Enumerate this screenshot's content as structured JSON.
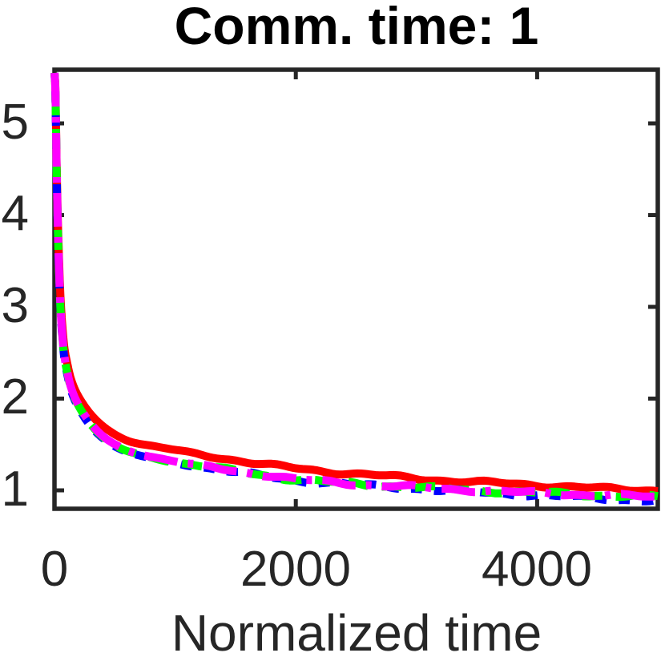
{
  "chart_data": {
    "type": "line",
    "title": "Comm. time: 1",
    "xlabel": "Normalized time",
    "ylabel": "",
    "xlim": [
      0,
      5000
    ],
    "ylim": [
      0.8,
      5.59
    ],
    "grid": false,
    "legend": "none",
    "box": true,
    "x_axis": {
      "label": "Normalized time",
      "tick_labels": [
        "0",
        "2000",
        "4000"
      ],
      "tick_values": [
        0,
        2000,
        4000
      ]
    },
    "y_axis": {
      "label": "",
      "tick_labels": [
        "1",
        "2",
        "3",
        "4",
        "5"
      ],
      "tick_values": [
        1,
        2,
        3,
        4,
        5
      ]
    },
    "series": [
      {
        "color": "#ff0000",
        "line_style": "solid",
        "points": [
          [
            0,
            5.55
          ],
          [
            8,
            5.35
          ],
          [
            18,
            4.55
          ],
          [
            30,
            3.85
          ],
          [
            45,
            3.25
          ],
          [
            60,
            2.88
          ],
          [
            80,
            2.58
          ],
          [
            100,
            2.42
          ],
          [
            140,
            2.2
          ],
          [
            200,
            2.02
          ],
          [
            300,
            1.83
          ],
          [
            420,
            1.68
          ],
          [
            560,
            1.57
          ],
          [
            700,
            1.51
          ],
          [
            950,
            1.45
          ],
          [
            1200,
            1.39
          ],
          [
            1500,
            1.33
          ],
          [
            1750,
            1.28
          ],
          [
            2000,
            1.24
          ],
          [
            2300,
            1.2
          ],
          [
            2600,
            1.17
          ],
          [
            2900,
            1.14
          ],
          [
            3200,
            1.11
          ],
          [
            3500,
            1.09
          ],
          [
            3800,
            1.07
          ],
          [
            4100,
            1.05
          ],
          [
            4400,
            1.03
          ],
          [
            4700,
            1.01
          ],
          [
            5000,
            1.0
          ]
        ]
      },
      {
        "color": "#0000ff",
        "line_style": "dashed",
        "points": [
          [
            0,
            5.55
          ],
          [
            8,
            5.3
          ],
          [
            18,
            4.45
          ],
          [
            30,
            3.72
          ],
          [
            45,
            3.1
          ],
          [
            60,
            2.75
          ],
          [
            80,
            2.46
          ],
          [
            100,
            2.3
          ],
          [
            140,
            2.08
          ],
          [
            200,
            1.9
          ],
          [
            300,
            1.7
          ],
          [
            420,
            1.55
          ],
          [
            560,
            1.44
          ],
          [
            700,
            1.38
          ],
          [
            950,
            1.31
          ],
          [
            1200,
            1.26
          ],
          [
            1500,
            1.2
          ],
          [
            1750,
            1.15
          ],
          [
            2000,
            1.11
          ],
          [
            2300,
            1.08
          ],
          [
            2600,
            1.05
          ],
          [
            2900,
            1.03
          ],
          [
            3200,
            1.0
          ],
          [
            3500,
            0.98
          ],
          [
            3800,
            0.96
          ],
          [
            4100,
            0.94
          ],
          [
            4400,
            0.92
          ],
          [
            4700,
            0.9
          ],
          [
            5000,
            0.89
          ]
        ]
      },
      {
        "color": "#00ff00",
        "line_style": "dashed",
        "points": [
          [
            0,
            5.55
          ],
          [
            8,
            5.32
          ],
          [
            18,
            4.48
          ],
          [
            30,
            3.75
          ],
          [
            45,
            3.12
          ],
          [
            60,
            2.77
          ],
          [
            80,
            2.48
          ],
          [
            100,
            2.32
          ],
          [
            140,
            2.1
          ],
          [
            200,
            1.92
          ],
          [
            300,
            1.72
          ],
          [
            420,
            1.56
          ],
          [
            560,
            1.45
          ],
          [
            700,
            1.39
          ],
          [
            950,
            1.32
          ],
          [
            1200,
            1.27
          ],
          [
            1500,
            1.21
          ],
          [
            1750,
            1.16
          ],
          [
            2000,
            1.12
          ],
          [
            2300,
            1.09
          ],
          [
            2600,
            1.06
          ],
          [
            2900,
            1.04
          ],
          [
            3200,
            1.02
          ],
          [
            3500,
            1.0
          ],
          [
            3800,
            0.98
          ],
          [
            4100,
            0.97
          ],
          [
            4400,
            0.95
          ],
          [
            4700,
            0.94
          ],
          [
            5000,
            0.93
          ]
        ]
      },
      {
        "color": "#ff00ff",
        "line_style": "dash-dot",
        "points": [
          [
            0,
            5.55
          ],
          [
            8,
            5.33
          ],
          [
            18,
            4.5
          ],
          [
            30,
            3.77
          ],
          [
            45,
            3.14
          ],
          [
            60,
            2.78
          ],
          [
            80,
            2.49
          ],
          [
            100,
            2.33
          ],
          [
            140,
            2.11
          ],
          [
            200,
            1.93
          ],
          [
            300,
            1.73
          ],
          [
            420,
            1.57
          ],
          [
            560,
            1.46
          ],
          [
            700,
            1.4
          ],
          [
            950,
            1.33
          ],
          [
            1200,
            1.27
          ],
          [
            1500,
            1.21
          ],
          [
            1750,
            1.17
          ],
          [
            2000,
            1.12
          ],
          [
            2300,
            1.09
          ],
          [
            2600,
            1.06
          ],
          [
            2900,
            1.04
          ],
          [
            3200,
            1.02
          ],
          [
            3500,
            1.0
          ],
          [
            3800,
            0.98
          ],
          [
            4100,
            0.97
          ],
          [
            4400,
            0.95
          ],
          [
            4700,
            0.94
          ],
          [
            5000,
            0.93
          ]
        ]
      }
    ],
    "axis_color": "#262626",
    "title_color": "#000000",
    "background_color": "#ffffff"
  }
}
